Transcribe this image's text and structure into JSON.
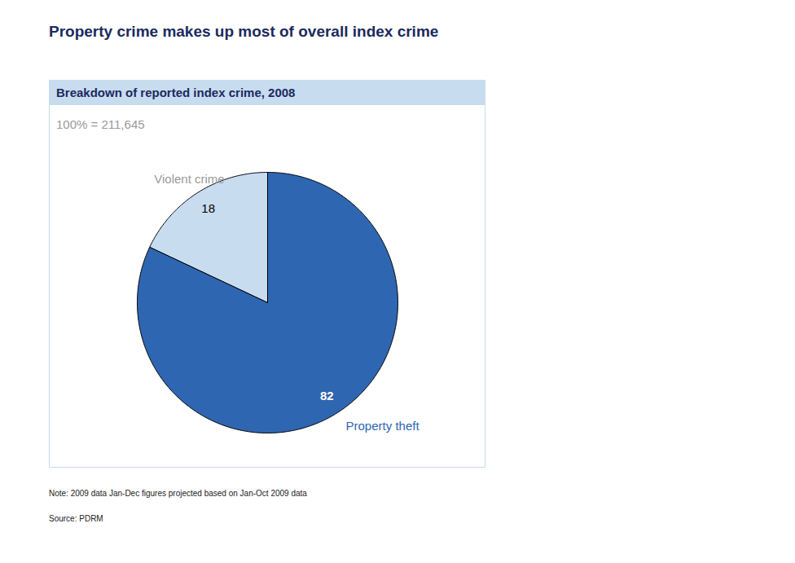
{
  "chart_data": {
    "type": "pie",
    "title": "Property crime makes up most of overall index crime",
    "subtitle": "Breakdown of reported index crime, 2008",
    "total": "100% = 211,645",
    "categories": [
      "Violent crime",
      "Property theft"
    ],
    "values": [
      18,
      82
    ],
    "colors": [
      "#c8dcf0",
      "#2f66b1"
    ],
    "data_labels": true,
    "note": "Note: 2009 data Jan-Dec figures projected based on Jan-Oct 2009 data",
    "source": "Source: PDRM"
  }
}
